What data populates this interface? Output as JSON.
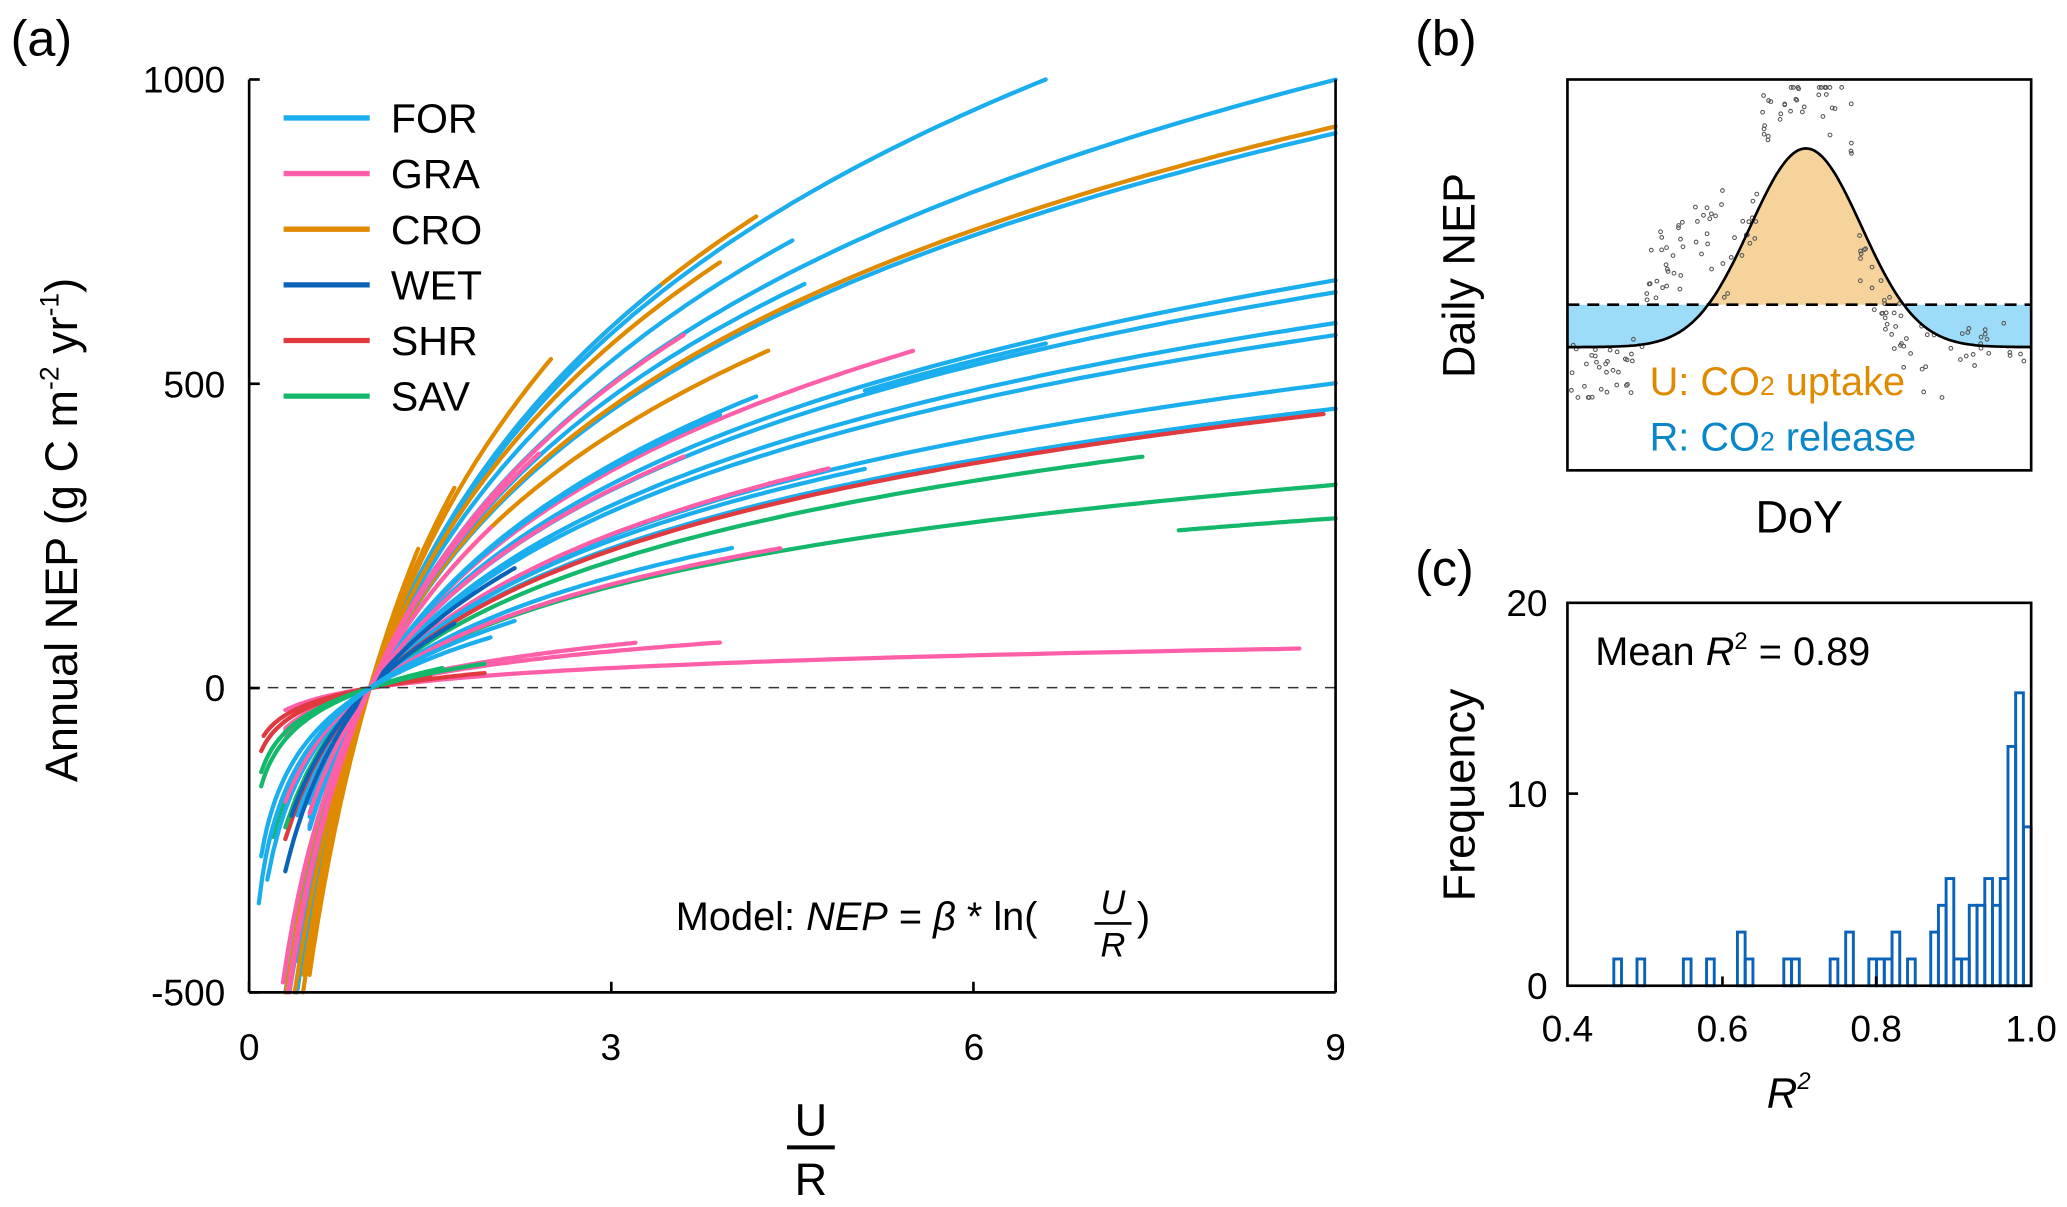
{
  "panel_labels": {
    "a": "(a)",
    "b": "(b)",
    "c": "(c)"
  },
  "colors": {
    "FOR": "#1aaeef",
    "GRA": "#ff5fa8",
    "CRO": "#e08a00",
    "WET": "#0b63b8",
    "SHR": "#e0393e",
    "SAV": "#14b86a",
    "uptake_fill": "#f5d39b",
    "release_fill": "#9ddcf8",
    "uptake_text": "#e08a00",
    "release_text": "#0a86c9",
    "hist": "#0b63b8"
  },
  "chart_data": [
    {
      "type": "line",
      "panel": "a",
      "xlabel_num": "U",
      "xlabel_den": "R",
      "ylabel": "Annual NEP (g C m",
      "ylabel_sup1": "-2",
      "ylabel_mid": " yr",
      "ylabel_sup2": "-1",
      "ylabel_end": ")",
      "xlim": [
        0,
        9
      ],
      "ylim": [
        -500,
        1000
      ],
      "xticks": [
        "0",
        "3",
        "6",
        "9"
      ],
      "yticks": [
        "1000",
        "500",
        "0",
        "-500"
      ],
      "reference_line": 0,
      "legend": [
        "FOR",
        "GRA",
        "CRO",
        "WET",
        "SHR",
        "SAV"
      ],
      "legend_position": "top-left",
      "model_label": "Model: ",
      "model_lhs": "NEP",
      "model_eq": " = ",
      "model_beta": "β",
      "model_mid": " * ln(",
      "model_num": "U",
      "model_den": "R",
      "model_end": ")",
      "series": [
        {
          "type": "FOR",
          "beta": 530,
          "x": [
            0.15,
            6.6
          ]
        },
        {
          "type": "FOR",
          "beta": 455,
          "x": [
            0.2,
            9
          ]
        },
        {
          "type": "FOR",
          "beta": 415,
          "x": [
            0.3,
            9
          ]
        },
        {
          "type": "CRO",
          "beta": 420,
          "x": [
            0.05,
            9
          ]
        },
        {
          "type": "CRO",
          "beta": 540,
          "x": [
            0.08,
            4.2
          ]
        },
        {
          "type": "FOR",
          "beta": 540,
          "x": [
            0.35,
            3.4
          ]
        },
        {
          "type": "FOR",
          "beta": 489,
          "x": [
            0.4,
            4.5
          ]
        },
        {
          "type": "CRO",
          "beta": 514,
          "x": [
            0.3,
            3.9
          ]
        },
        {
          "type": "FOR",
          "beta": 435,
          "x": [
            0.45,
            4.6
          ]
        },
        {
          "type": "CRO",
          "beta": 590,
          "x": [
            0.45,
            2.5
          ]
        },
        {
          "type": "CRO",
          "beta": 380,
          "x": [
            0.4,
            4.3
          ]
        },
        {
          "type": "GRA",
          "beta": 453,
          "x": [
            0.32,
            3.6
          ]
        },
        {
          "type": "GRA",
          "beta": 325,
          "x": [
            0.5,
            5.5
          ]
        },
        {
          "type": "FOR",
          "beta": 305,
          "x": [
            0.5,
            9
          ]
        },
        {
          "type": "FOR",
          "beta": 296,
          "x": [
            0.5,
            9
          ]
        },
        {
          "type": "FOR",
          "beta": 273,
          "x": [
            0.5,
            9
          ]
        },
        {
          "type": "FOR",
          "beta": 264,
          "x": [
            0.5,
            9
          ]
        },
        {
          "type": "FOR",
          "beta": 228,
          "x": [
            0.4,
            9
          ]
        },
        {
          "type": "FOR",
          "beta": 209,
          "x": [
            0.4,
            9
          ]
        },
        {
          "type": "FOR",
          "beta": 300,
          "x": [
            5.1,
            6.6
          ]
        },
        {
          "type": "FOR",
          "beta": 334,
          "x": [
            0.5,
            4.2
          ]
        },
        {
          "type": "FOR",
          "beta": 330,
          "x": [
            0.5,
            3.9
          ]
        },
        {
          "type": "GRA",
          "beta": 297,
          "x": [
            0.5,
            3.6
          ]
        },
        {
          "type": "GRA",
          "beta": 230,
          "x": [
            0.5,
            4.8
          ]
        },
        {
          "type": "FOR",
          "beta": 221,
          "x": [
            0.4,
            5.1
          ]
        },
        {
          "type": "SHR",
          "beta": 206,
          "x": [
            0.3,
            8.9
          ]
        },
        {
          "type": "SAV",
          "beta": 190,
          "x": [
            0.3,
            7.4
          ]
        },
        {
          "type": "SAV",
          "beta": 152,
          "x": [
            0.2,
            9
          ]
        },
        {
          "type": "SAV",
          "beta": 127,
          "x": [
            7.7,
            9
          ]
        },
        {
          "type": "FOR",
          "beta": 166,
          "x": [
            0.15,
            4
          ]
        },
        {
          "type": "GRA",
          "beta": 155,
          "x": [
            0.3,
            4.4
          ]
        },
        {
          "type": "GRA",
          "beta": 55,
          "x": [
            0.3,
            3.9
          ]
        },
        {
          "type": "GRA",
          "beta": 64,
          "x": [
            0.3,
            3.2
          ]
        },
        {
          "type": "GRA",
          "beta": 30,
          "x": [
            0.3,
            8.7
          ]
        },
        {
          "type": "GRA",
          "beta": 58,
          "x": [
            0.3,
            2
          ]
        },
        {
          "type": "SHR",
          "beta": 37,
          "x": [
            0.12,
            1.95
          ]
        },
        {
          "type": "SHR",
          "beta": 45,
          "x": [
            0.1,
            1.5
          ]
        },
        {
          "type": "SAV",
          "beta": 60,
          "x": [
            0.1,
            1.95
          ]
        },
        {
          "type": "SAV",
          "beta": 70,
          "x": [
            0.1,
            1.6
          ]
        },
        {
          "type": "WET",
          "beta": 250,
          "x": [
            0.3,
            2.2
          ]
        },
        {
          "type": "WET",
          "beta": 200,
          "x": [
            0.35,
            1.7
          ]
        },
        {
          "type": "CRO",
          "beta": 680,
          "x": [
            0.5,
            1.4
          ]
        },
        {
          "type": "CRO",
          "beta": 620,
          "x": [
            0.05,
            1.7
          ]
        },
        {
          "type": "GRA",
          "beta": 440,
          "x": [
            0.32,
            2.4
          ]
        },
        {
          "type": "GRA",
          "beta": 380,
          "x": [
            0.28,
            2.0
          ]
        },
        {
          "type": "FOR",
          "beta": 140,
          "x": [
            0.08,
            2.2
          ]
        },
        {
          "type": "FOR",
          "beta": 120,
          "x": [
            0.1,
            2.0
          ]
        }
      ]
    },
    {
      "type": "scatter",
      "panel": "b",
      "xlabel": "DoY",
      "ylabel": "Daily NEP",
      "uptake_label_prefix": "U: CO",
      "uptake_label_sub": "2",
      "uptake_label_suffix": " uptake",
      "release_label_prefix": "R: CO",
      "release_label_sub": "2",
      "release_label_suffix": " release"
    },
    {
      "type": "bar",
      "panel": "c",
      "xlabel": "R",
      "xlabel_sup": "2",
      "ylabel": "Frequency",
      "xlim": [
        0.4,
        1.0
      ],
      "ylim": [
        0,
        20
      ],
      "xticks": [
        "0.4",
        "0.6",
        "0.8",
        "1.0"
      ],
      "yticks": [
        "20",
        "10",
        "0"
      ],
      "annotation_prefix": "Mean ",
      "annotation_r": "R",
      "annotation_sup": "2",
      "annotation_suffix": " = 0.89",
      "bin_width": 0.01,
      "bins": [
        0.46,
        0.49,
        0.55,
        0.58,
        0.62,
        0.63,
        0.68,
        0.69,
        0.74,
        0.76,
        0.79,
        0.8,
        0.81,
        0.82,
        0.84,
        0.87,
        0.88,
        0.89,
        0.9,
        0.91,
        0.92,
        0.93,
        0.94,
        0.95,
        0.96,
        0.97,
        0.98,
        0.99
      ],
      "values": [
        1.4,
        1.4,
        1.4,
        1.4,
        2.8,
        1.4,
        1.4,
        1.4,
        1.4,
        2.8,
        1.4,
        1.4,
        1.4,
        2.8,
        1.4,
        2.8,
        4.2,
        5.6,
        1.4,
        1.4,
        4.2,
        4.2,
        5.6,
        4.2,
        5.6,
        12.5,
        15.3,
        8.3
      ]
    }
  ]
}
